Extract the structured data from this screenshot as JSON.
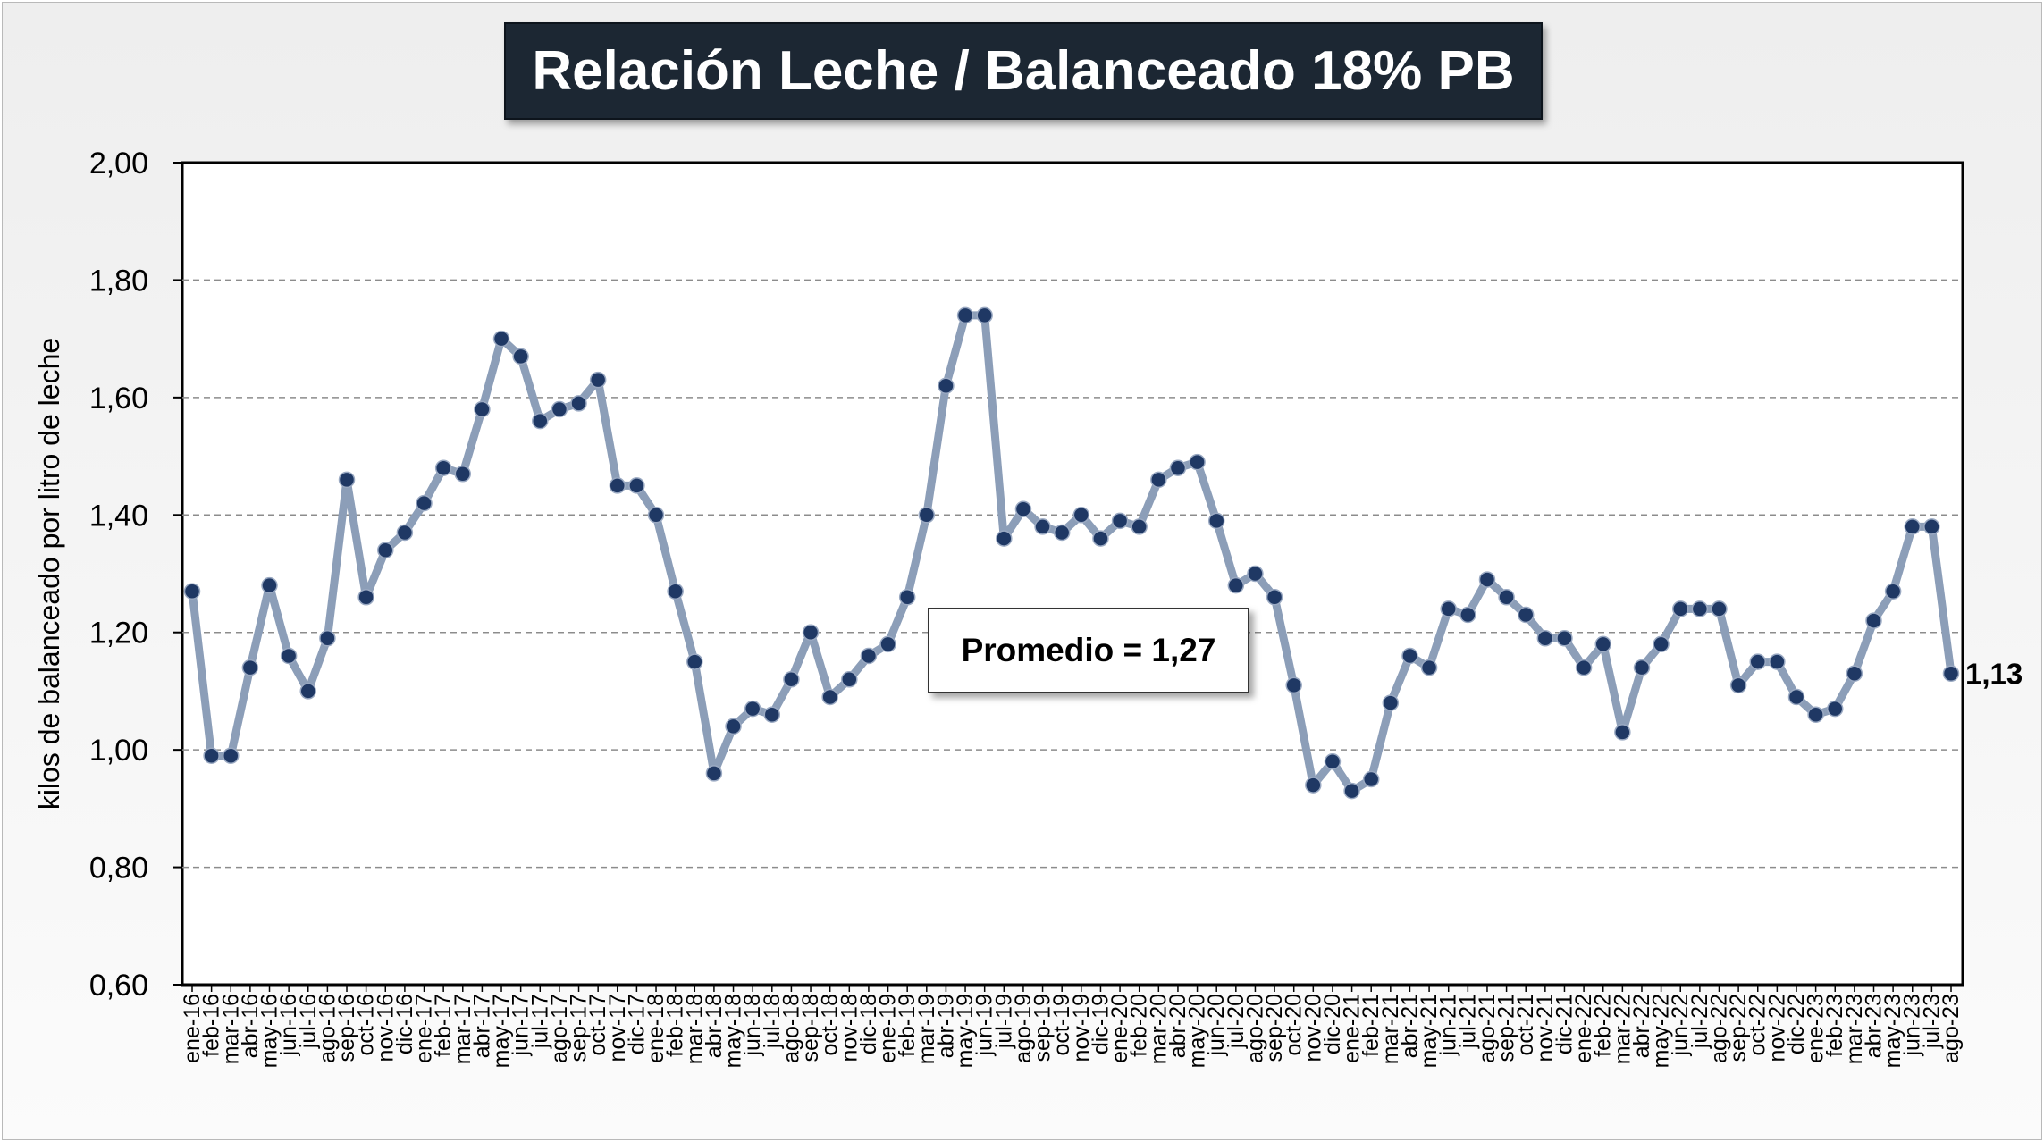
{
  "title": "Relación Leche / Balanceado 18% PB",
  "annotation": "Promedio = 1,27",
  "chart_data": {
    "type": "line",
    "title": "Relación Leche / Balanceado 18% PB",
    "xlabel": "",
    "ylabel": "kilos de balanceado por litro de leche",
    "ylim": [
      0.6,
      2.0
    ],
    "yticks": [
      "0,60",
      "0,80",
      "1,00",
      "1,20",
      "1,40",
      "1,60",
      "1,80",
      "2,00"
    ],
    "grid": "horizontal dashed",
    "line_color": "#8c9eb8",
    "marker_color": "#1f3864",
    "average": 1.27,
    "end_label": "1,13",
    "categories": [
      "ene-16",
      "feb-16",
      "mar-16",
      "abr-16",
      "may-16",
      "jun-16",
      "jul-16",
      "ago-16",
      "sep-16",
      "oct-16",
      "nov-16",
      "dic-16",
      "ene-17",
      "feb-17",
      "mar-17",
      "abr-17",
      "may-17",
      "jun-17",
      "jul-17",
      "ago-17",
      "sep-17",
      "oct-17",
      "nov-17",
      "dic-17",
      "ene-18",
      "feb-18",
      "mar-18",
      "abr-18",
      "may-18",
      "jun-18",
      "jul-18",
      "ago-18",
      "sep-18",
      "oct-18",
      "nov-18",
      "dic-18",
      "ene-19",
      "feb-19",
      "mar-19",
      "abr-19",
      "may-19",
      "jun-19",
      "jul-19",
      "ago-19",
      "sep-19",
      "oct-19",
      "nov-19",
      "dic-19",
      "ene-20",
      "feb-20",
      "mar-20",
      "abr-20",
      "may-20",
      "jun-20",
      "jul-20",
      "ago-20",
      "sep-20",
      "oct-20",
      "nov-20",
      "dic-20",
      "ene-21",
      "feb-21",
      "mar-21",
      "abr-21",
      "may-21",
      "jun-21",
      "jul-21",
      "ago-21",
      "sep-21",
      "oct-21",
      "nov-21",
      "dic-21",
      "ene-22",
      "feb-22",
      "mar-22",
      "abr-22",
      "may-22",
      "jun-22",
      "jul-22",
      "ago-22",
      "sep-22",
      "oct-22",
      "nov-22",
      "dic-22",
      "ene-23",
      "feb-23",
      "mar-23",
      "abr-23",
      "may-23",
      "jun-23",
      "jul-23",
      "ago-23"
    ],
    "series": [
      {
        "values": [
          1.27,
          0.99,
          0.99,
          1.14,
          1.28,
          1.16,
          1.1,
          1.19,
          1.46,
          1.26,
          1.34,
          1.37,
          1.42,
          1.48,
          1.47,
          1.58,
          1.7,
          1.67,
          1.56,
          1.58,
          1.59,
          1.63,
          1.45,
          1.45,
          1.4,
          1.27,
          1.15,
          0.96,
          1.04,
          1.07,
          1.06,
          1.12,
          1.2,
          1.09,
          1.12,
          1.16,
          1.18,
          1.26,
          1.4,
          1.62,
          1.74,
          1.74,
          1.36,
          1.41,
          1.38,
          1.37,
          1.4,
          1.36,
          1.39,
          1.38,
          1.46,
          1.48,
          1.49,
          1.39,
          1.28,
          1.3,
          1.26,
          1.11,
          0.94,
          0.98,
          0.93,
          0.95,
          1.08,
          1.16,
          1.14,
          1.24,
          1.23,
          1.29,
          1.26,
          1.23,
          1.19,
          1.19,
          1.14,
          1.18,
          1.03,
          1.14,
          1.18,
          1.24,
          1.24,
          1.24,
          1.11,
          1.15,
          1.15,
          1.09,
          1.06,
          1.07,
          1.13,
          1.22,
          1.27,
          1.38,
          1.38,
          1.13
        ]
      }
    ]
  }
}
